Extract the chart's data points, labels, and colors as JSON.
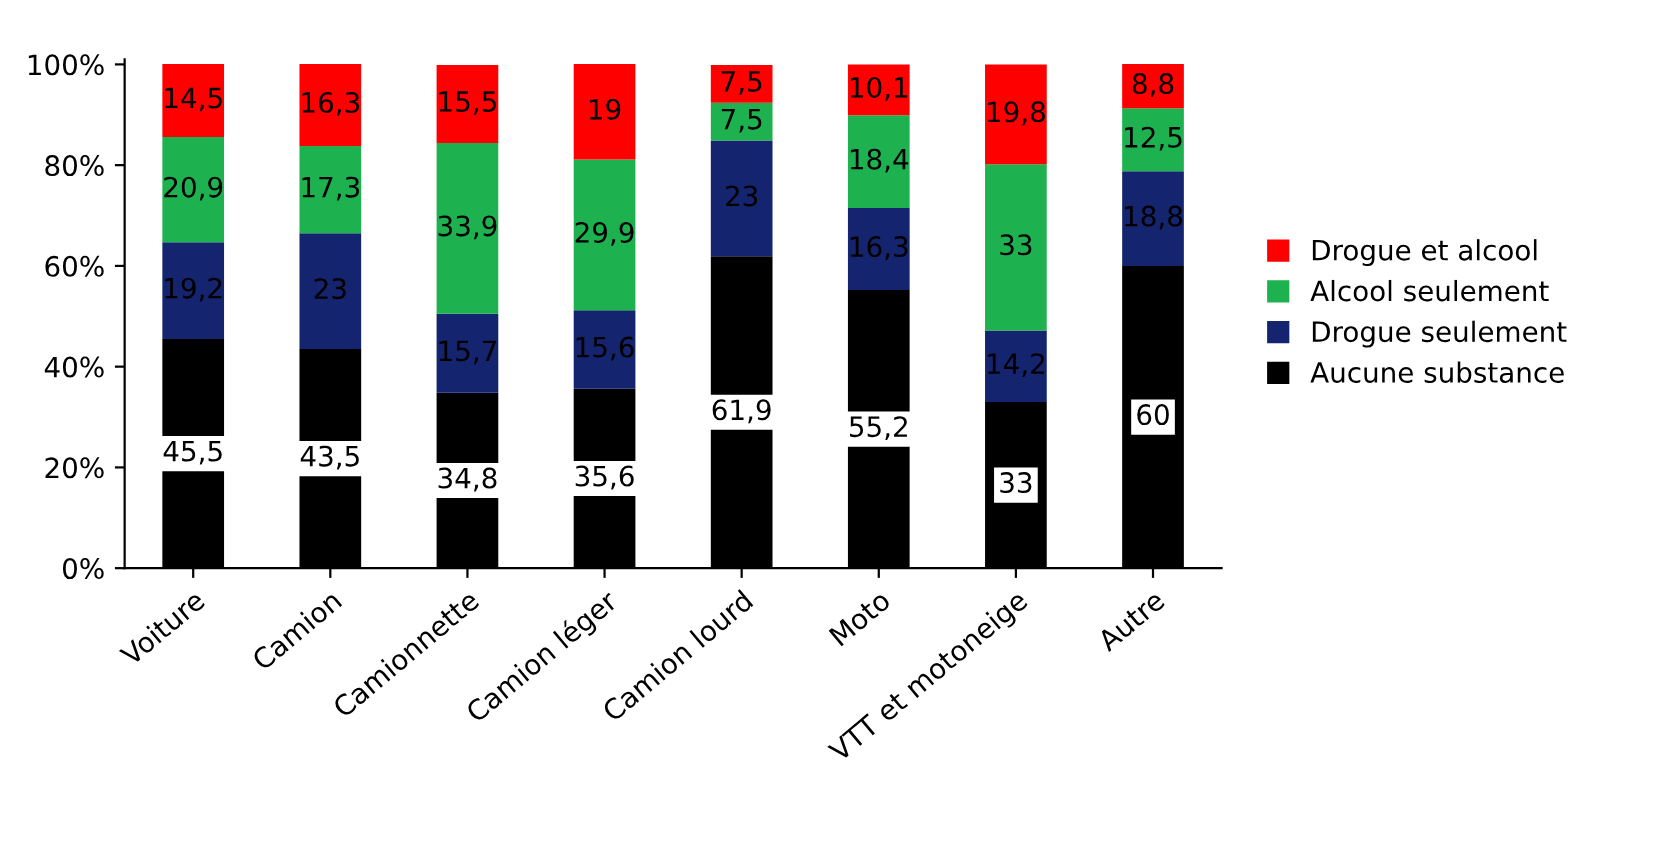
{
  "chart_data": {
    "type": "bar",
    "stacked": true,
    "categories": [
      "Voiture",
      "Camion",
      "Camionnette",
      "Camion léger",
      "Camion lourd",
      "Moto",
      "VTT et motoneige",
      "Autre"
    ],
    "series": [
      {
        "name": "Aucune substance",
        "color": "#000000",
        "values": [
          45.5,
          43.5,
          34.8,
          35.6,
          61.9,
          55.2,
          33,
          60
        ],
        "value_labels": [
          "45,5",
          "43,5",
          "34,8",
          "35,6",
          "61,9",
          "55,2",
          "33",
          "60"
        ]
      },
      {
        "name": "Drogue seulement",
        "color": "#14246e",
        "values": [
          19.2,
          23,
          15.7,
          15.6,
          23,
          16.3,
          14.2,
          18.8
        ],
        "value_labels": [
          "19,2",
          "23",
          "15,7",
          "15,6",
          "23",
          "16,3",
          "14,2",
          "18,8"
        ]
      },
      {
        "name": "Alcool seulement",
        "color": "#1db24f",
        "values": [
          20.9,
          17.3,
          33.9,
          29.9,
          7.5,
          18.4,
          33,
          12.5
        ],
        "value_labels": [
          "20,9",
          "17,3",
          "33,9",
          "29,9",
          "7,5",
          "18,4",
          "33",
          "12,5"
        ]
      },
      {
        "name": "Drogue et alcool",
        "color": "#ff0000",
        "values": [
          14.5,
          16.3,
          15.5,
          19,
          7.5,
          10.1,
          19.8,
          8.8
        ],
        "value_labels": [
          "14,5",
          "16,3",
          "15,5",
          "19",
          "7,5",
          "10,1",
          "19,8",
          "8,8"
        ]
      }
    ],
    "ylim": [
      0,
      101
    ],
    "yticks": [
      {
        "value": 0,
        "label": "0%"
      },
      {
        "value": 20,
        "label": "20%"
      },
      {
        "value": 40,
        "label": "40%"
      },
      {
        "value": 60,
        "label": "60%"
      },
      {
        "value": 80,
        "label": "80%"
      },
      {
        "value": 100,
        "label": "100%"
      }
    ],
    "legend": "right",
    "grid": false
  }
}
